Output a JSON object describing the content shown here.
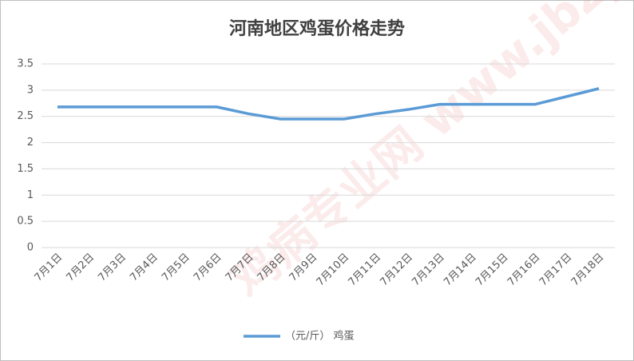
{
  "chart_data": {
    "type": "line",
    "title": "河南地区鸡蛋价格走势",
    "watermark": "鸡病专业网 www.jbzyw.com",
    "categories": [
      "7月1日",
      "7月2日",
      "7月3日",
      "7月4日",
      "7月5日",
      "7月6日",
      "7月7日",
      "7月8日",
      "7月9日",
      "7月10日",
      "7月11日",
      "7月12日",
      "7月13日",
      "7月14日",
      "7月15日",
      "7月16日",
      "7月17日",
      "7月18日"
    ],
    "series": [
      {
        "name": "（元/斤） 鸡蛋",
        "color": "#5b9bd5",
        "values": [
          2.68,
          2.68,
          2.68,
          2.68,
          2.68,
          2.68,
          2.55,
          2.45,
          2.45,
          2.45,
          2.55,
          2.63,
          2.73,
          2.73,
          2.73,
          2.73,
          2.88,
          3.03
        ]
      }
    ],
    "ylim": [
      0,
      3.5
    ],
    "yticks": [
      0,
      0.5,
      1,
      1.5,
      2,
      2.5,
      3,
      3.5
    ],
    "grid": true,
    "legend": "bottom"
  }
}
